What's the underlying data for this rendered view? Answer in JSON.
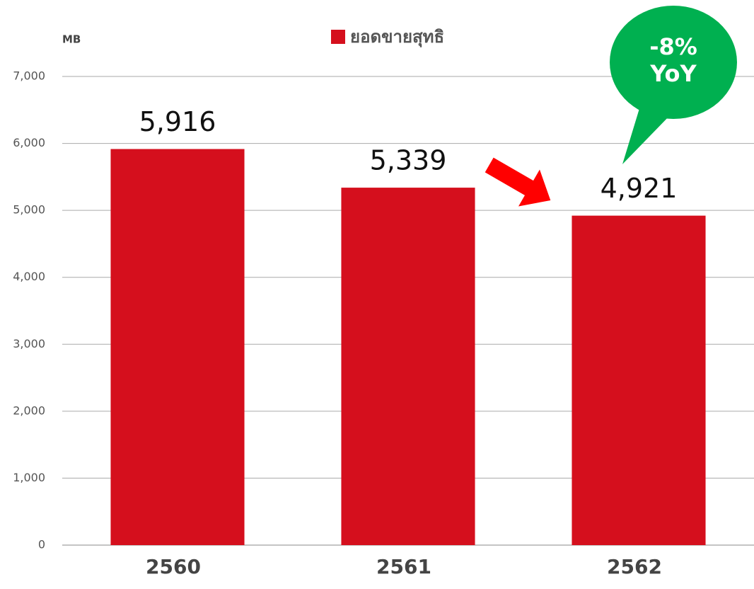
{
  "chart_data": {
    "type": "bar",
    "y_axis_label": "MB",
    "categories": [
      "2560",
      "2561",
      "2562"
    ],
    "series": [
      {
        "name": "ยอดขายสุทธิ",
        "color": "#d50f1d",
        "values": [
          5916,
          5339,
          4921
        ],
        "value_labels": [
          "5,916",
          "5,339",
          "4,921"
        ]
      }
    ],
    "ylim": [
      0,
      7000
    ],
    "yticks": [
      0,
      {
        "value": 1000,
        "label": "1,000"
      },
      {
        "value": 2000,
        "label": "2,000"
      },
      {
        "value": 3000,
        "label": "3,000"
      },
      {
        "value": 4000,
        "label": "4,000"
      },
      {
        "value": 5000,
        "label": "5,000"
      },
      {
        "value": 6000,
        "label": "6,000"
      },
      {
        "value": 7000,
        "label": "7,000"
      }
    ],
    "grid": true,
    "annotation": [
      "-8%",
      "YoY"
    ]
  }
}
